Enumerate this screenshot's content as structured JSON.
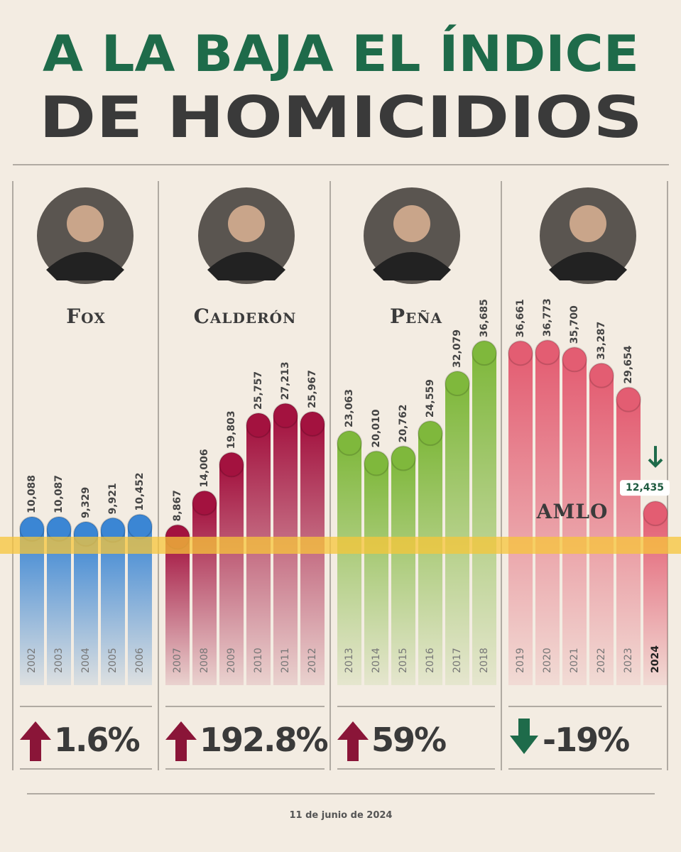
{
  "chart_data": {
    "type": "bar",
    "title": "A LA BAJA EL ÍNDICE",
    "subtitle": "DE HOMICIDIOS",
    "date": "11 de junio de 2024",
    "groups": [
      {
        "name": "Fox",
        "color": "#3b86d4",
        "change": "1.6%",
        "categories": [
          "2002",
          "2003",
          "2004",
          "2005",
          "2006"
        ],
        "values": [
          10088,
          10087,
          9329,
          9921,
          10452
        ],
        "value_labels": [
          "10,088",
          "10,087",
          "9,329",
          "9,921",
          "10,452"
        ]
      },
      {
        "name": "Calderón",
        "color": "#a3123f",
        "change": "192.8%",
        "categories": [
          "2007",
          "2008",
          "2009",
          "2010",
          "2011",
          "2012"
        ],
        "values": [
          8867,
          14006,
          19803,
          25757,
          27213,
          25967
        ],
        "value_labels": [
          "8,867",
          "14,006",
          "19,803",
          "25,757",
          "27,213",
          "25,967"
        ]
      },
      {
        "name": "Peña",
        "color": "#7fb83c",
        "change": "59%",
        "categories": [
          "2013",
          "2014",
          "2015",
          "2016",
          "2017",
          "2018"
        ],
        "values": [
          23063,
          20010,
          20762,
          24559,
          32079,
          36685
        ],
        "value_labels": [
          "23,063",
          "20,010",
          "20,762",
          "24,559",
          "32,079",
          "36,685"
        ]
      },
      {
        "name": "AMLO",
        "color": "#e35d72",
        "change": "-19%",
        "categories": [
          "2019",
          "2020",
          "2021",
          "2022",
          "2023",
          "2024"
        ],
        "values": [
          36661,
          36773,
          35700,
          33287,
          29654,
          12435
        ],
        "value_labels": [
          "36,661",
          "36,773",
          "35,700",
          "33,287",
          "29,654",
          "12,435"
        ]
      }
    ]
  }
}
